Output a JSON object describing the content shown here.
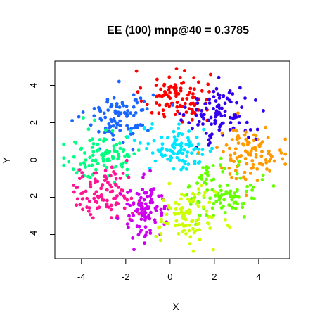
{
  "chart_data": {
    "type": "scatter",
    "title": "EE (100) mnp@40 = 0.3785",
    "xlabel": "X",
    "ylabel": "Y",
    "xlim": [
      -5.2,
      5.4
    ],
    "ylim": [
      -5.3,
      5.3
    ],
    "x_ticks": [
      -4,
      -2,
      0,
      2,
      4
    ],
    "y_ticks": [
      -4,
      -2,
      0,
      2,
      4
    ],
    "grid": false,
    "legend": "none",
    "clusters": [
      {
        "color": "#ff0000",
        "center": [
          0.3,
          3.4
        ],
        "spread": [
          0.75,
          0.7
        ],
        "count": 100
      },
      {
        "color": "#1a66ff",
        "center": [
          -2.3,
          2.4
        ],
        "spread": [
          0.75,
          0.7
        ],
        "count": 100
      },
      {
        "color": "#3300ee",
        "center": [
          2.3,
          2.4
        ],
        "spread": [
          0.75,
          0.75
        ],
        "count": 100
      },
      {
        "color": "#00ff80",
        "center": [
          -3.0,
          0.3
        ],
        "spread": [
          0.85,
          0.7
        ],
        "count": 100
      },
      {
        "color": "#00e6ff",
        "center": [
          0.4,
          0.6
        ],
        "spread": [
          0.85,
          0.6
        ],
        "count": 100
      },
      {
        "color": "#ff9900",
        "center": [
          3.6,
          0.4
        ],
        "spread": [
          0.8,
          0.7
        ],
        "count": 100
      },
      {
        "color": "#ff1493",
        "center": [
          -3.0,
          -1.8
        ],
        "spread": [
          0.75,
          0.7
        ],
        "count": 100
      },
      {
        "color": "#66ff00",
        "center": [
          2.4,
          -1.6
        ],
        "spread": [
          0.8,
          0.75
        ],
        "count": 100
      },
      {
        "color": "#cc00ee",
        "center": [
          -1.1,
          -2.7
        ],
        "spread": [
          0.55,
          0.75
        ],
        "count": 100
      },
      {
        "color": "#ccff00",
        "center": [
          0.8,
          -3.1
        ],
        "spread": [
          0.65,
          0.75
        ],
        "count": 100
      }
    ]
  }
}
